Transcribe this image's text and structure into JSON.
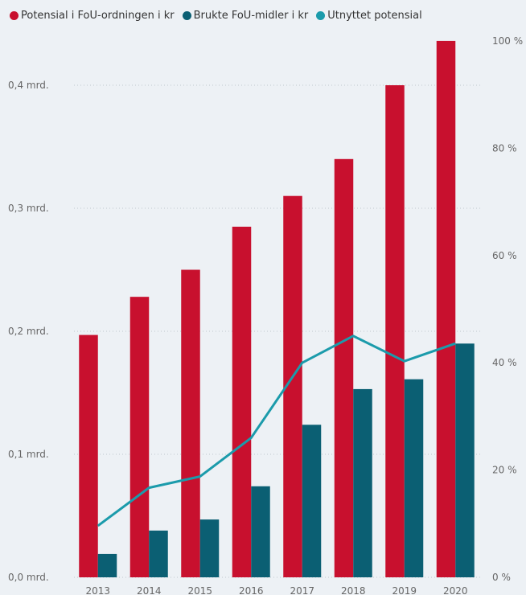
{
  "chart_data": {
    "type": "bar+line",
    "categories": [
      "2013",
      "2014",
      "2015",
      "2016",
      "2017",
      "2018",
      "2019",
      "2020"
    ],
    "series": [
      {
        "name": "Potensial i FoU-ordningen i kr",
        "kind": "bar",
        "axis": "left",
        "color": "#c8102e",
        "values": [
          0.197,
          0.228,
          0.25,
          0.285,
          0.31,
          0.34,
          0.4,
          0.436
        ]
      },
      {
        "name": "Brukte FoU-midler i kr",
        "kind": "bar",
        "axis": "left",
        "color": "#0b5f73",
        "values": [
          0.019,
          0.038,
          0.047,
          0.074,
          0.124,
          0.153,
          0.161,
          0.19
        ]
      },
      {
        "name": "Utnyttet potensial",
        "kind": "line",
        "axis": "right",
        "color": "#1b9bab",
        "values": [
          9.6,
          16.7,
          18.8,
          26.0,
          40.0,
          45.0,
          40.3,
          43.6
        ]
      }
    ],
    "y_left": {
      "ylim": [
        0,
        0.44
      ],
      "ticks": [
        0.0,
        0.1,
        0.2,
        0.3,
        0.4
      ],
      "tick_labels": [
        "0,0 mrd.",
        "0,1 mrd.",
        "0,2 mrd.",
        "0,3 mrd.",
        "0,4 mrd."
      ]
    },
    "y_right": {
      "ylim": [
        0,
        100
      ],
      "ticks": [
        0,
        20,
        40,
        60,
        80,
        100
      ],
      "tick_labels": [
        "0 %",
        "20 %",
        "40 %",
        "60 %",
        "80 %",
        "100 %"
      ]
    },
    "grid": true,
    "legend_position": "top-left"
  }
}
